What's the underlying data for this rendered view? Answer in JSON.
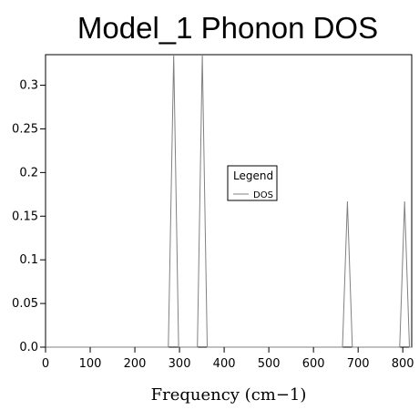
{
  "chart_data": {
    "type": "line",
    "title": "Model_1 Phonon DOS",
    "xlabel": "Frequency (cm−1)",
    "ylabel": "",
    "xlim": [
      0,
      820
    ],
    "ylim": [
      0,
      0.335
    ],
    "xticks": [
      0,
      100,
      200,
      300,
      400,
      500,
      600,
      700,
      800
    ],
    "yticks": [
      0.0,
      0.05,
      0.1,
      0.15,
      0.2,
      0.25,
      0.3
    ],
    "ytick_labels": [
      "0.0",
      "0.05",
      "0.1",
      "0.15",
      "0.2",
      "0.25",
      "0.3"
    ],
    "legend": {
      "title": "Legend",
      "placement": "center"
    },
    "series": [
      {
        "name": "DOS",
        "color": "#808080",
        "x": [
          0,
          275,
          287,
          298,
          340,
          351,
          362,
          665,
          676,
          687,
          793,
          804,
          815,
          820
        ],
        "y": [
          0,
          0,
          0.335,
          0,
          0,
          0.335,
          0,
          0,
          0.167,
          0,
          0,
          0.167,
          0,
          0
        ]
      }
    ]
  }
}
